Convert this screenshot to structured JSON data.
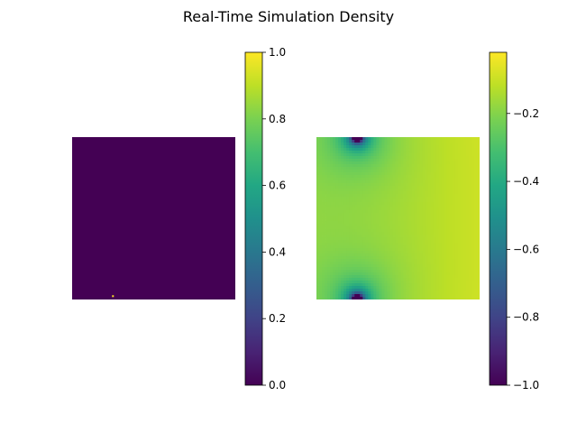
{
  "figure": {
    "title": "Real-Time Simulation Density"
  },
  "chart_data": [
    {
      "type": "heatmap",
      "title": "",
      "colormap": "viridis",
      "colorbar": {
        "vmin": 0.0,
        "vmax": 1.0,
        "ticks": [
          0.0,
          0.2,
          0.4,
          0.6,
          0.8,
          1.0
        ],
        "tick_labels": [
          "0.0",
          "0.2",
          "0.4",
          "0.6",
          "0.8",
          "1.0"
        ]
      },
      "field": {
        "background_value": 0.0,
        "hotspots": [
          {
            "u": 0.25,
            "v": 0.985,
            "value": 1.0
          }
        ]
      },
      "axes_visible": false
    },
    {
      "type": "heatmap",
      "title": "",
      "colormap": "viridis",
      "colorbar": {
        "vmin": -1.0,
        "vmax": -0.02,
        "ticks": [
          -1.0,
          -0.8,
          -0.6,
          -0.4,
          -0.2
        ],
        "tick_labels": [
          "−1.0",
          "−0.8",
          "−0.6",
          "−0.4",
          "−0.2"
        ]
      },
      "field": {
        "sources": [
          {
            "u": 0.25,
            "v": 0.0,
            "value": -1.0
          },
          {
            "u": 0.25,
            "v": 1.0,
            "value": -1.0
          }
        ],
        "far_value": -0.04
      },
      "axes_visible": false
    }
  ]
}
